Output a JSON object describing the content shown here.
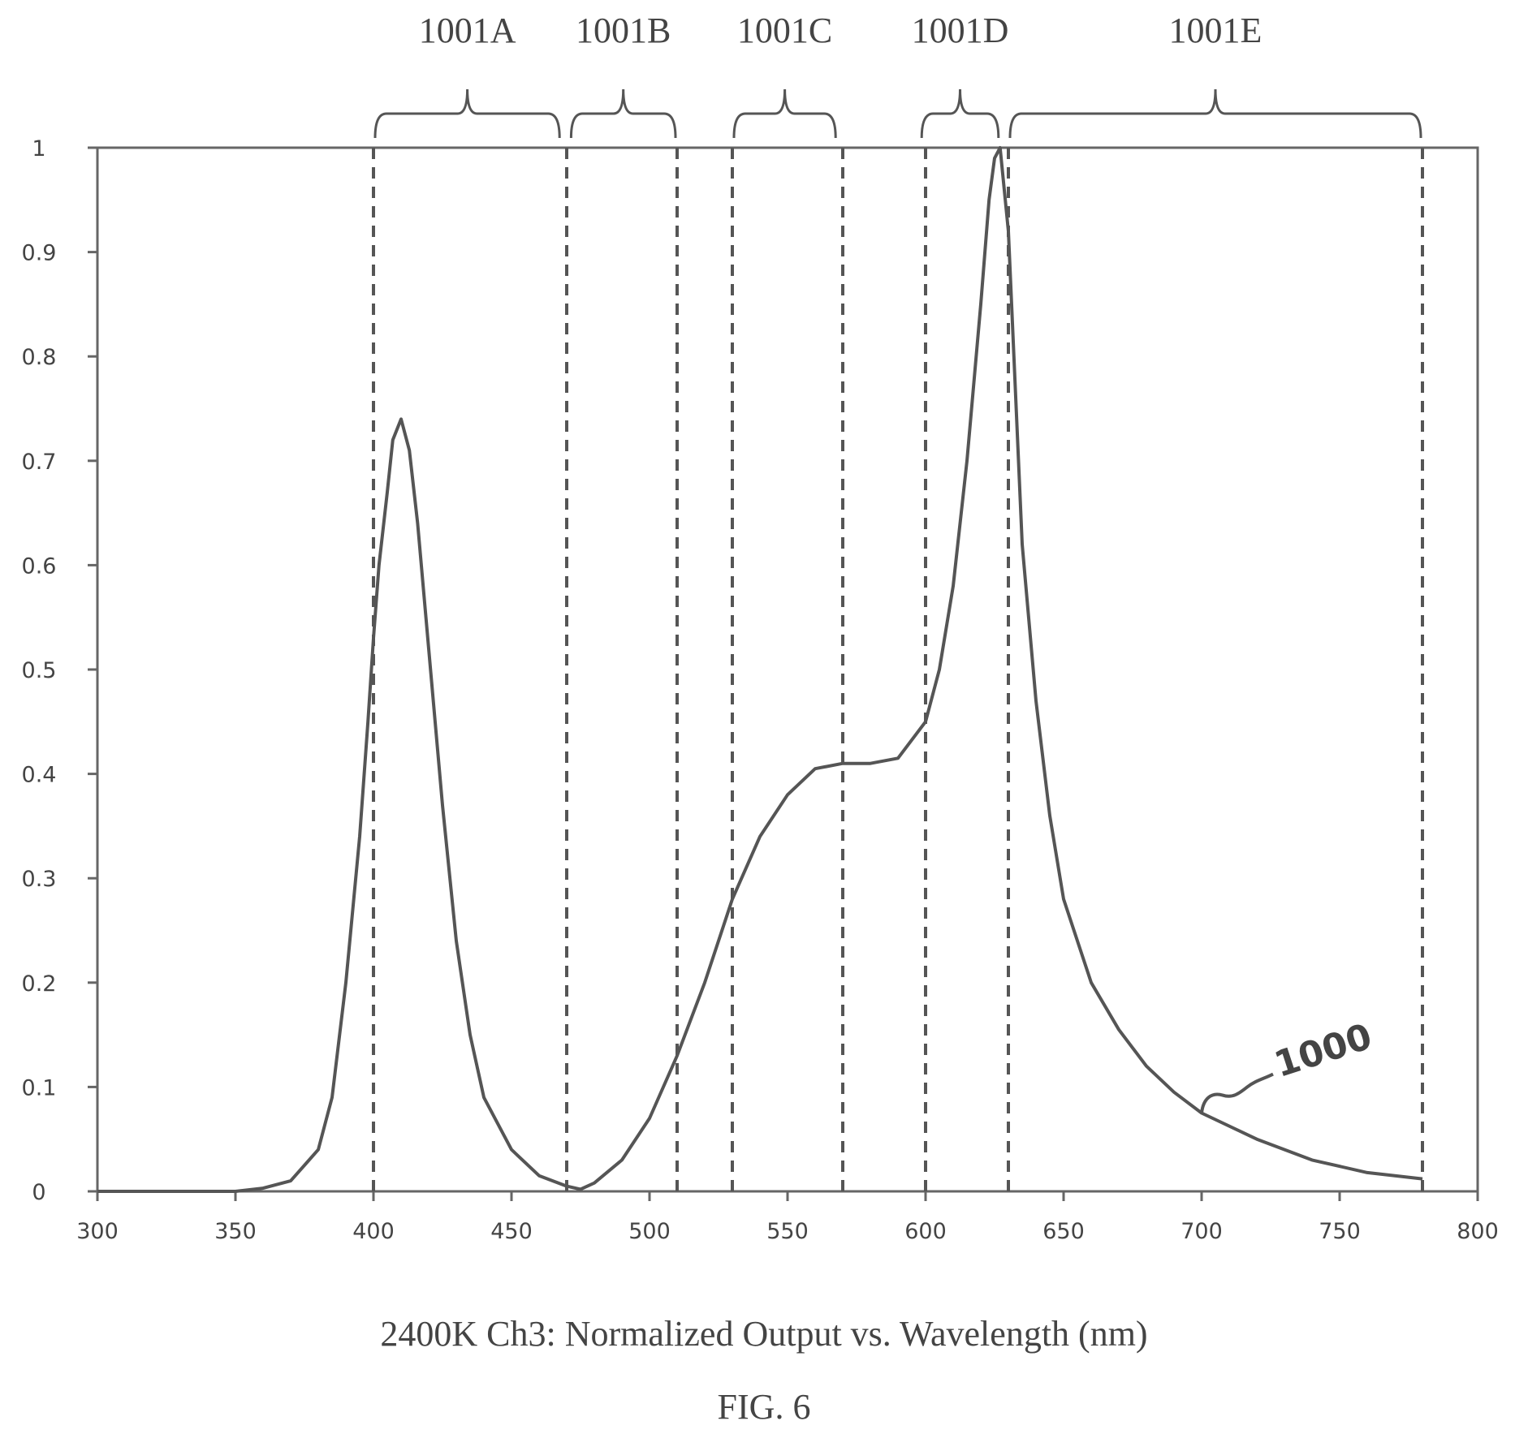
{
  "chart_data": {
    "type": "line",
    "title": "",
    "xlabel": "",
    "ylabel": "",
    "xlim": [
      300,
      800
    ],
    "ylim": [
      0,
      1
    ],
    "x_ticks": [
      300,
      350,
      400,
      450,
      500,
      550,
      600,
      650,
      700,
      750,
      800
    ],
    "y_ticks": [
      0,
      0.1,
      0.2,
      0.3,
      0.4,
      0.5,
      0.6,
      0.7,
      0.8,
      0.9,
      1
    ],
    "x_tick_labels": [
      "300",
      "350",
      "400",
      "450",
      "500",
      "550",
      "600",
      "650",
      "700",
      "750",
      "800"
    ],
    "y_tick_labels": [
      "0",
      "0.1",
      "0.2",
      "0.3",
      "0.4",
      "0.5",
      "0.6",
      "0.7",
      "0.8",
      "0.9",
      "1"
    ],
    "grid": false,
    "legend": "none",
    "series": [
      {
        "x": [
          300,
          350,
          360,
          370,
          380,
          385,
          390,
          395,
          398,
          400,
          402,
          405,
          407,
          410,
          413,
          416,
          420,
          425,
          430,
          435,
          440,
          450,
          460,
          470,
          475,
          480,
          490,
          500,
          510,
          520,
          530,
          540,
          550,
          560,
          570,
          580,
          590,
          600,
          605,
          610,
          615,
          620,
          623,
          625,
          627,
          630,
          632,
          635,
          640,
          645,
          650,
          660,
          670,
          680,
          690,
          700,
          720,
          740,
          760,
          780
        ],
        "values": [
          0,
          0,
          0.003,
          0.01,
          0.04,
          0.09,
          0.2,
          0.34,
          0.45,
          0.53,
          0.6,
          0.67,
          0.72,
          0.74,
          0.71,
          0.64,
          0.52,
          0.37,
          0.24,
          0.15,
          0.09,
          0.04,
          0.015,
          0.005,
          0.002,
          0.008,
          0.03,
          0.07,
          0.13,
          0.2,
          0.28,
          0.34,
          0.38,
          0.405,
          0.41,
          0.41,
          0.415,
          0.45,
          0.5,
          0.58,
          0.7,
          0.85,
          0.95,
          0.99,
          1.0,
          0.92,
          0.8,
          0.62,
          0.47,
          0.36,
          0.28,
          0.2,
          0.155,
          0.12,
          0.095,
          0.075,
          0.05,
          0.03,
          0.018,
          0.012
        ]
      }
    ],
    "band_markers_x": [
      400,
      470,
      510,
      530,
      570,
      600,
      630,
      780
    ],
    "bands": [
      {
        "label": "1001A",
        "from": 400,
        "to": 468
      },
      {
        "label": "1001B",
        "from": 471,
        "to": 510
      },
      {
        "label": "1001C",
        "from": 530,
        "to": 568
      },
      {
        "label": "1001D",
        "from": 598,
        "to": 627
      },
      {
        "label": "1001E",
        "from": 630,
        "to": 780
      }
    ],
    "curve_ref": {
      "label": "1000",
      "x": 700,
      "y": 0.075
    }
  },
  "caption": "2400K Ch3: Normalized Output vs. Wavelength (nm)",
  "figure_label": "FIG. 6",
  "colors": {
    "line": "#555555",
    "dash": "#555555",
    "text": "#444444"
  }
}
